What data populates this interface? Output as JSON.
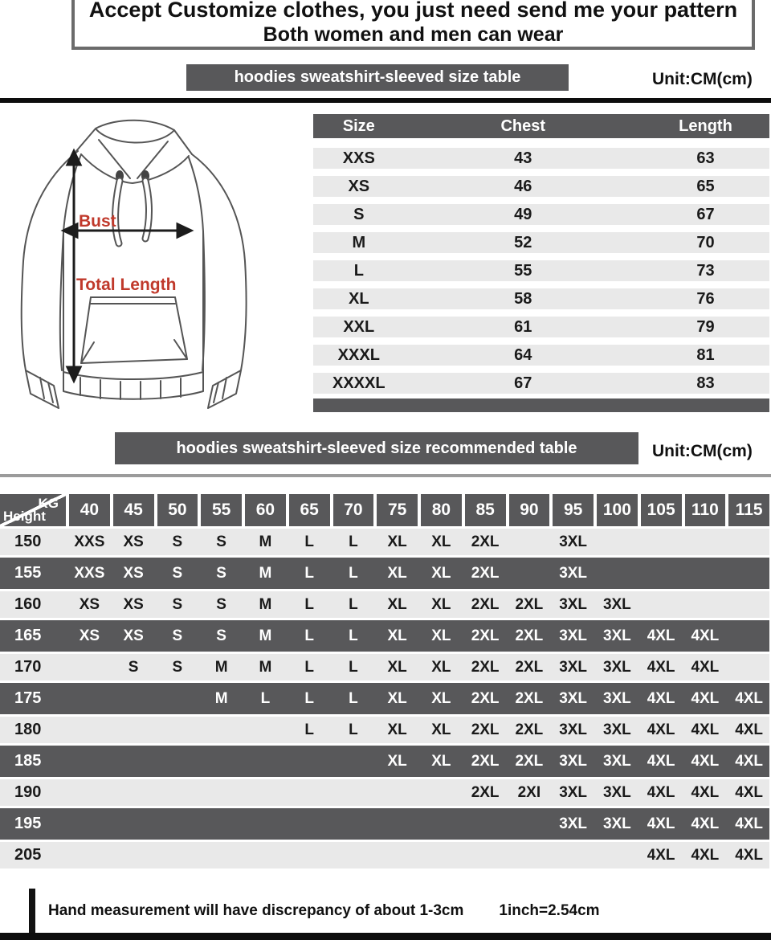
{
  "header": {
    "line1": "Accept Customize clothes, you just need send me your pattern",
    "line2": "Both women and men can wear"
  },
  "size_table": {
    "title": "hoodies sweatshirt-sleeved size  table",
    "unit": "Unit:CM(cm)",
    "columns": [
      "Size",
      "Chest",
      "Length"
    ],
    "rows": [
      [
        "XXS",
        "43",
        "63"
      ],
      [
        "XS",
        "46",
        "65"
      ],
      [
        "S",
        "49",
        "67"
      ],
      [
        "M",
        "52",
        "70"
      ],
      [
        "L",
        "55",
        "73"
      ],
      [
        "XL",
        "58",
        "76"
      ],
      [
        "XXL",
        "61",
        "79"
      ],
      [
        "XXXL",
        "64",
        "81"
      ],
      [
        "XXXXL",
        "67",
        "83"
      ]
    ]
  },
  "diagram": {
    "bust_label": "Bust",
    "total_length_label": "Total Length"
  },
  "recommended_table": {
    "title": "hoodies sweatshirt-sleeved size recommended table",
    "unit": "Unit:CM(cm)",
    "corner_top": "KG",
    "corner_bottom": "Height",
    "weight_columns": [
      "40",
      "45",
      "50",
      "55",
      "60",
      "65",
      "70",
      "75",
      "80",
      "85",
      "90",
      "95",
      "100",
      "105",
      "110",
      "115"
    ],
    "rows": [
      {
        "height": "150",
        "values": [
          "XXS",
          "XS",
          "S",
          "S",
          "M",
          "L",
          "L",
          "XL",
          "XL",
          "2XL",
          "",
          "3XL",
          "",
          "",
          "",
          ""
        ]
      },
      {
        "height": "155",
        "values": [
          "XXS",
          "XS",
          "S",
          "S",
          "M",
          "L",
          "L",
          "XL",
          "XL",
          "2XL",
          "",
          "3XL",
          "",
          "",
          "",
          ""
        ]
      },
      {
        "height": "160",
        "values": [
          "XS",
          "XS",
          "S",
          "S",
          "M",
          "L",
          "L",
          "XL",
          "XL",
          "2XL",
          "2XL",
          "3XL",
          "3XL",
          "",
          "",
          ""
        ]
      },
      {
        "height": "165",
        "values": [
          "XS",
          "XS",
          "S",
          "S",
          "M",
          "L",
          "L",
          "XL",
          "XL",
          "2XL",
          "2XL",
          "3XL",
          "3XL",
          "4XL",
          "4XL",
          ""
        ]
      },
      {
        "height": "170",
        "values": [
          "",
          "S",
          "S",
          "M",
          "M",
          "L",
          "L",
          "XL",
          "XL",
          "2XL",
          "2XL",
          "3XL",
          "3XL",
          "4XL",
          "4XL",
          ""
        ]
      },
      {
        "height": "175",
        "values": [
          "",
          "",
          "",
          "M",
          "L",
          "L",
          "L",
          "XL",
          "XL",
          "2XL",
          "2XL",
          "3XL",
          "3XL",
          "4XL",
          "4XL",
          "4XL"
        ]
      },
      {
        "height": "180",
        "values": [
          "",
          "",
          "",
          "",
          "",
          "L",
          "L",
          "XL",
          "XL",
          "2XL",
          "2XL",
          "3XL",
          "3XL",
          "4XL",
          "4XL",
          "4XL"
        ]
      },
      {
        "height": "185",
        "values": [
          "",
          "",
          "",
          "",
          "",
          "",
          "",
          "XL",
          "XL",
          "2XL",
          "2XL",
          "3XL",
          "3XL",
          "4XL",
          "4XL",
          "4XL"
        ]
      },
      {
        "height": "190",
        "values": [
          "",
          "",
          "",
          "",
          "",
          "",
          "",
          "",
          "",
          "2XL",
          "2XI",
          "3XL",
          "3XL",
          "4XL",
          "4XL",
          "4XL"
        ]
      },
      {
        "height": "195",
        "values": [
          "",
          "",
          "",
          "",
          "",
          "",
          "",
          "",
          "",
          "",
          "",
          "3XL",
          "3XL",
          "4XL",
          "4XL",
          "4XL"
        ]
      },
      {
        "height": "205",
        "values": [
          "",
          "",
          "",
          "",
          "",
          "",
          "",
          "",
          "",
          "",
          "",
          "",
          "",
          "4XL",
          "4XL",
          "4XL"
        ]
      }
    ]
  },
  "footer": {
    "note": "Hand measurement will have discrepancy of about  1-3cm",
    "conversion": "1inch=2.54cm"
  },
  "colors": {
    "dark_gray": "#58585a",
    "light_row": "#e9e9e9",
    "red_label": "#c0392b",
    "black_bar": "#0d0d0d"
  }
}
